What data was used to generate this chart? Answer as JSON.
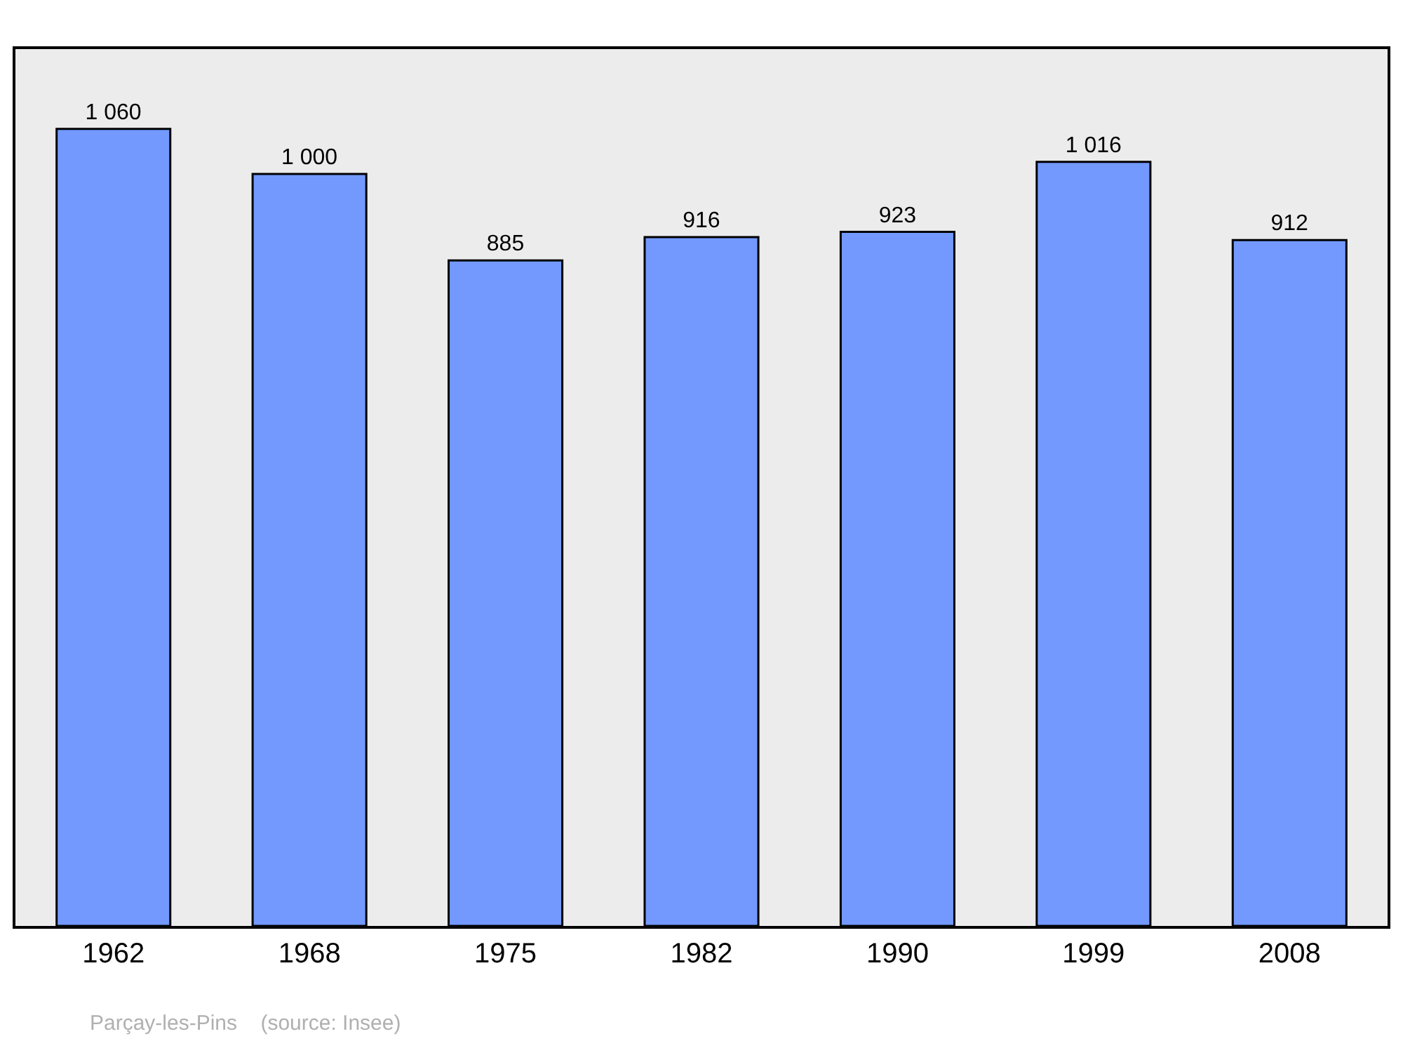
{
  "chart_data": {
    "type": "bar",
    "categories": [
      "1962",
      "1968",
      "1975",
      "1982",
      "1990",
      "1999",
      "2008"
    ],
    "values": [
      1060,
      1000,
      885,
      916,
      923,
      1016,
      912
    ],
    "value_labels": [
      "1 060",
      "1 000",
      "885",
      "916",
      "923",
      "1 016",
      "912"
    ],
    "color": "#7399ff",
    "ylim": [
      0,
      1166
    ],
    "grid": false,
    "annotations": [
      "Parçay-les-Pins    (source: Insee)"
    ]
  }
}
